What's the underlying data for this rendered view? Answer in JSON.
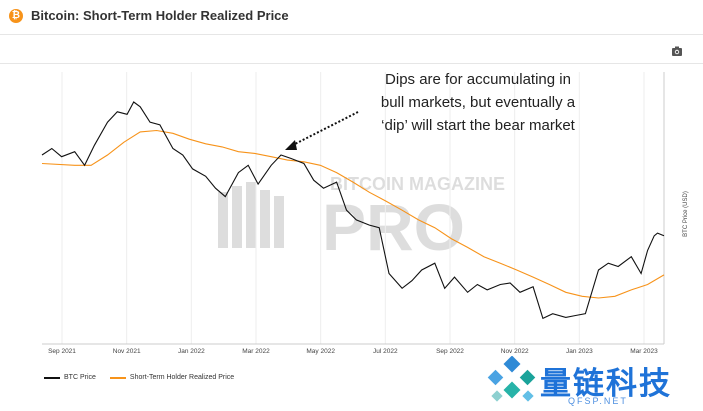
{
  "header": {
    "title": "Bitcoin: Short-Term Holder Realized Price",
    "logo_icon": "bitcoin-icon",
    "logo_glyph": "₿"
  },
  "toolbar": {
    "camera_icon": "camera-icon"
  },
  "annotation": {
    "lines": [
      "Dips are for accumulating in",
      "bull markets, but eventually a",
      "‘dip’ will start the bear market"
    ]
  },
  "watermark": {
    "line1": "BITCOIN MAGAZINE",
    "line2": "PRO"
  },
  "legend": {
    "items": [
      "BTC Price",
      "Short-Term Holder Realized Price"
    ]
  },
  "brand": {
    "name_cn": "量链科技",
    "url": "QFSP.NET"
  },
  "colors": {
    "btc": "#111111",
    "sth": "#f7931a",
    "brand": "#1f73d8",
    "grid": "#eeeeee"
  },
  "chart_data": {
    "type": "line",
    "title": "Bitcoin: Short-Term Holder Realized Price",
    "ylabel": "BTC Price (USD)",
    "xlabel": "",
    "x_ticks": [
      "Sep 2021",
      "Nov 2021",
      "Jan 2022",
      "Mar 2022",
      "May 2022",
      "Jul 2022",
      "Sep 2022",
      "Nov 2022",
      "Jan 2023",
      "Mar 2023"
    ],
    "x_range": [
      0,
      19
    ],
    "y_log": true,
    "ylim": [
      14000,
      80000
    ],
    "series": [
      {
        "name": "BTC Price",
        "color": "#111111",
        "x": [
          0,
          0.3,
          0.6,
          1,
          1.3,
          1.6,
          2,
          2.3,
          2.6,
          2.8,
          3,
          3.3,
          3.6,
          4,
          4.3,
          4.6,
          5,
          5.3,
          5.6,
          6,
          6.3,
          6.6,
          7,
          7.3,
          7.6,
          8,
          8.3,
          8.6,
          9,
          9.3,
          9.6,
          10,
          10.3,
          10.6,
          11,
          11.3,
          11.6,
          12,
          12.3,
          12.6,
          13,
          13.3,
          13.6,
          14,
          14.3,
          14.6,
          15,
          15.3,
          15.6,
          16,
          16.3,
          16.6,
          17,
          17.3,
          17.6,
          18,
          18.3,
          18.5,
          18.7,
          18.8,
          19
        ],
        "values": [
          47000,
          49000,
          46500,
          48000,
          44000,
          50000,
          58000,
          62000,
          61000,
          66000,
          64000,
          58000,
          57000,
          49000,
          47000,
          43000,
          41000,
          38000,
          36000,
          42000,
          44000,
          39000,
          44000,
          47000,
          46000,
          44500,
          40000,
          38000,
          39500,
          33000,
          31000,
          30000,
          29500,
          22000,
          20000,
          21000,
          22500,
          23500,
          20000,
          21500,
          19500,
          20500,
          19800,
          20500,
          20700,
          19500,
          20200,
          16500,
          17000,
          16600,
          16800,
          17000,
          22500,
          23500,
          23000,
          24500,
          22000,
          25500,
          28000,
          28500,
          28000
        ]
      },
      {
        "name": "Short-Term Holder Realized Price",
        "color": "#f7931a",
        "x": [
          0,
          1,
          1.5,
          2,
          2.5,
          3,
          3.5,
          4,
          4.5,
          5,
          5.5,
          6,
          6.5,
          7,
          7.5,
          8,
          8.5,
          9,
          9.5,
          10,
          10.5,
          11,
          11.5,
          12,
          12.5,
          13,
          13.5,
          14,
          14.5,
          15,
          15.5,
          16,
          16.5,
          17,
          17.5,
          18,
          18.5,
          19
        ],
        "values": [
          44500,
          44000,
          44000,
          47000,
          51000,
          54500,
          55000,
          54000,
          52000,
          50500,
          49500,
          48000,
          47500,
          46500,
          45500,
          45000,
          44000,
          42000,
          39500,
          37000,
          35000,
          33000,
          31000,
          29500,
          27500,
          26000,
          24500,
          23500,
          22500,
          21500,
          20500,
          19500,
          19000,
          18800,
          19000,
          19800,
          20500,
          21800
        ]
      }
    ]
  }
}
